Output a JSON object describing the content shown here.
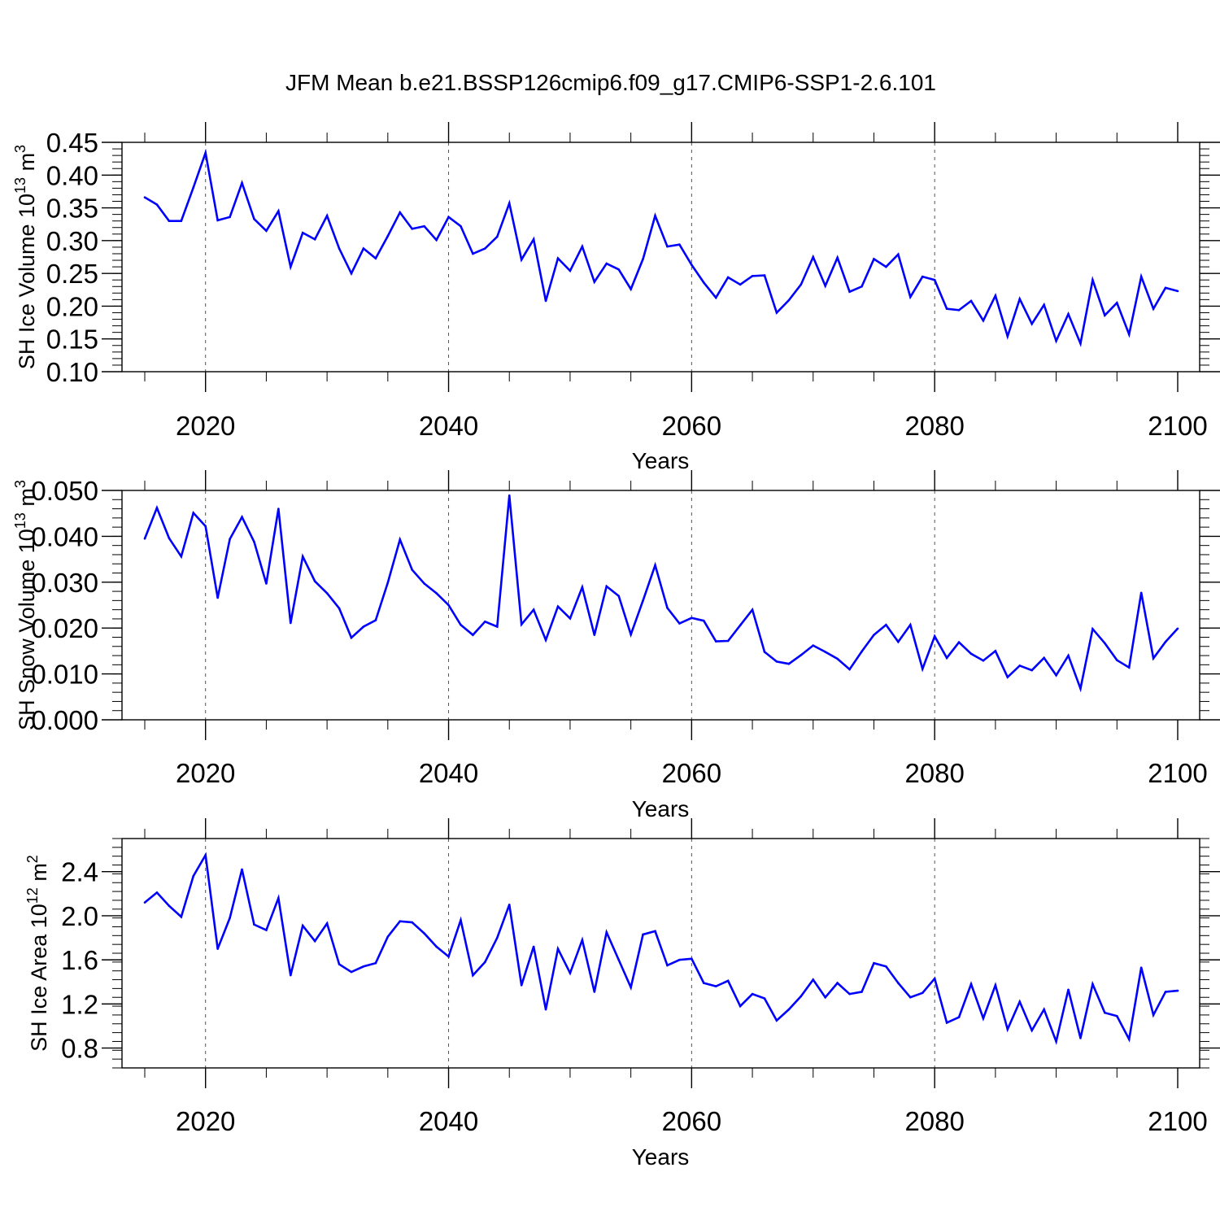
{
  "figure": {
    "title": "JFM Mean b.e21.BSSP126cmip6.f09_g17.CMIP6-SSP1-2.6.101",
    "line_color": "#0000ff"
  },
  "chart_data": [
    {
      "type": "line",
      "title": "",
      "xlabel": "Years",
      "ylabel_main": "SH Ice Volume 10",
      "ylabel_exp": "13",
      "ylabel_unit": " m",
      "ylabel_unit_exp": "3",
      "xlim": [
        2015,
        2100
      ],
      "ylim": [
        0.1,
        0.45
      ],
      "xticks": [
        2020,
        2040,
        2060,
        2080,
        2100
      ],
      "yticks": [
        0.1,
        0.15,
        0.2,
        0.25,
        0.3,
        0.35,
        0.4,
        0.45
      ],
      "ytick_labels": [
        "0.10",
        "0.15",
        "0.20",
        "0.25",
        "0.30",
        "0.35",
        "0.40",
        "0.45"
      ],
      "x": [
        2015,
        2016,
        2017,
        2018,
        2019,
        2020,
        2021,
        2022,
        2023,
        2024,
        2025,
        2026,
        2027,
        2028,
        2029,
        2030,
        2031,
        2032,
        2033,
        2034,
        2035,
        2036,
        2037,
        2038,
        2039,
        2040,
        2041,
        2042,
        2043,
        2044,
        2045,
        2046,
        2047,
        2048,
        2049,
        2050,
        2051,
        2052,
        2053,
        2054,
        2055,
        2056,
        2057,
        2058,
        2059,
        2060,
        2061,
        2062,
        2063,
        2064,
        2065,
        2066,
        2067,
        2068,
        2069,
        2070,
        2071,
        2072,
        2073,
        2074,
        2075,
        2076,
        2077,
        2078,
        2079,
        2080,
        2081,
        2082,
        2083,
        2084,
        2085,
        2086,
        2087,
        2088,
        2089,
        2090,
        2091,
        2092,
        2093,
        2094,
        2095,
        2096,
        2097,
        2098,
        2099,
        2100
      ],
      "values": [
        0.366,
        0.355,
        0.33,
        0.33,
        0.381,
        0.434,
        0.331,
        0.336,
        0.388,
        0.333,
        0.315,
        0.345,
        0.26,
        0.312,
        0.302,
        0.338,
        0.288,
        0.25,
        0.288,
        0.273,
        0.307,
        0.343,
        0.318,
        0.322,
        0.301,
        0.336,
        0.322,
        0.28,
        0.288,
        0.306,
        0.357,
        0.271,
        0.302,
        0.208,
        0.273,
        0.254,
        0.291,
        0.237,
        0.265,
        0.256,
        0.226,
        0.272,
        0.338,
        0.291,
        0.294,
        0.263,
        0.236,
        0.213,
        0.244,
        0.233,
        0.246,
        0.247,
        0.19,
        0.209,
        0.233,
        0.275,
        0.231,
        0.274,
        0.222,
        0.23,
        0.272,
        0.26,
        0.279,
        0.214,
        0.245,
        0.24,
        0.196,
        0.194,
        0.208,
        0.178,
        0.216,
        0.154,
        0.211,
        0.173,
        0.202,
        0.147,
        0.188,
        0.143,
        0.24,
        0.186,
        0.205,
        0.157,
        0.245,
        0.196,
        0.228,
        0.223
      ]
    },
    {
      "type": "line",
      "title": "",
      "xlabel": "Years",
      "ylabel_main": "SH Snow Volume 10",
      "ylabel_exp": "13",
      "ylabel_unit": " m",
      "ylabel_unit_exp": "3",
      "xlim": [
        2015,
        2100
      ],
      "ylim": [
        0.0,
        0.05
      ],
      "xticks": [
        2020,
        2040,
        2060,
        2080,
        2100
      ],
      "yticks": [
        0.0,
        0.01,
        0.02,
        0.03,
        0.04,
        0.05
      ],
      "ytick_labels": [
        "0.000",
        "0.010",
        "0.020",
        "0.030",
        "0.040",
        "0.050"
      ],
      "x": [
        2015,
        2016,
        2017,
        2018,
        2019,
        2020,
        2021,
        2022,
        2023,
        2024,
        2025,
        2026,
        2027,
        2028,
        2029,
        2030,
        2031,
        2032,
        2033,
        2034,
        2035,
        2036,
        2037,
        2038,
        2039,
        2040,
        2041,
        2042,
        2043,
        2044,
        2045,
        2046,
        2047,
        2048,
        2049,
        2050,
        2051,
        2052,
        2053,
        2054,
        2055,
        2056,
        2057,
        2058,
        2059,
        2060,
        2061,
        2062,
        2063,
        2064,
        2065,
        2066,
        2067,
        2068,
        2069,
        2070,
        2071,
        2072,
        2073,
        2074,
        2075,
        2076,
        2077,
        2078,
        2079,
        2080,
        2081,
        2082,
        2083,
        2084,
        2085,
        2086,
        2087,
        2088,
        2089,
        2090,
        2091,
        2092,
        2093,
        2094,
        2095,
        2096,
        2097,
        2098,
        2099,
        2100
      ],
      "values": [
        0.0395,
        0.0462,
        0.0396,
        0.0356,
        0.0451,
        0.0422,
        0.0266,
        0.0394,
        0.0442,
        0.0388,
        0.0297,
        0.046,
        0.0211,
        0.0356,
        0.0302,
        0.0276,
        0.0243,
        0.0179,
        0.0203,
        0.0217,
        0.0299,
        0.0393,
        0.0327,
        0.0297,
        0.0276,
        0.025,
        0.0207,
        0.0185,
        0.0214,
        0.0203,
        0.0489,
        0.0208,
        0.024,
        0.0174,
        0.0247,
        0.0221,
        0.0289,
        0.0185,
        0.0291,
        0.027,
        0.0186,
        0.026,
        0.0337,
        0.0244,
        0.021,
        0.0222,
        0.0216,
        0.0171,
        0.0172,
        0.0206,
        0.024,
        0.0148,
        0.0127,
        0.0122,
        0.0141,
        0.0162,
        0.0148,
        0.0133,
        0.011,
        0.0149,
        0.0185,
        0.0207,
        0.017,
        0.0207,
        0.0111,
        0.0182,
        0.0135,
        0.0169,
        0.0144,
        0.0129,
        0.015,
        0.0093,
        0.0118,
        0.0108,
        0.0135,
        0.0097,
        0.014,
        0.0068,
        0.0198,
        0.0167,
        0.013,
        0.0114,
        0.0277,
        0.0134,
        0.017,
        0.0199
      ]
    },
    {
      "type": "line",
      "title": "",
      "xlabel": "Years",
      "ylabel_main": "SH Ice Area 10",
      "ylabel_exp": "12",
      "ylabel_unit": " m",
      "ylabel_unit_exp": "2",
      "xlim": [
        2015,
        2100
      ],
      "ylim": [
        0.62,
        2.7
      ],
      "xticks": [
        2020,
        2040,
        2060,
        2080,
        2100
      ],
      "yticks": [
        0.8,
        1.2,
        1.6,
        2.0,
        2.4
      ],
      "ytick_labels": [
        "0.8",
        "1.2",
        "1.6",
        "2.0",
        "2.4"
      ],
      "x": [
        2015,
        2016,
        2017,
        2018,
        2019,
        2020,
        2021,
        2022,
        2023,
        2024,
        2025,
        2026,
        2027,
        2028,
        2029,
        2030,
        2031,
        2032,
        2033,
        2034,
        2035,
        2036,
        2037,
        2038,
        2039,
        2040,
        2041,
        2042,
        2043,
        2044,
        2045,
        2046,
        2047,
        2048,
        2049,
        2050,
        2051,
        2052,
        2053,
        2054,
        2055,
        2056,
        2057,
        2058,
        2059,
        2060,
        2061,
        2062,
        2063,
        2064,
        2065,
        2066,
        2067,
        2068,
        2069,
        2070,
        2071,
        2072,
        2073,
        2074,
        2075,
        2076,
        2077,
        2078,
        2079,
        2080,
        2081,
        2082,
        2083,
        2084,
        2085,
        2086,
        2087,
        2088,
        2089,
        2090,
        2091,
        2092,
        2093,
        2094,
        2095,
        2096,
        2097,
        2098,
        2099,
        2100
      ],
      "values": [
        2.12,
        2.21,
        2.09,
        1.99,
        2.36,
        2.55,
        1.7,
        1.98,
        2.42,
        1.92,
        1.87,
        2.16,
        1.46,
        1.91,
        1.77,
        1.93,
        1.56,
        1.49,
        1.54,
        1.57,
        1.81,
        1.95,
        1.94,
        1.84,
        1.72,
        1.63,
        1.96,
        1.46,
        1.58,
        1.8,
        2.1,
        1.37,
        1.72,
        1.15,
        1.7,
        1.48,
        1.78,
        1.31,
        1.85,
        1.6,
        1.35,
        1.83,
        1.86,
        1.55,
        1.6,
        1.61,
        1.39,
        1.36,
        1.41,
        1.18,
        1.29,
        1.25,
        1.05,
        1.15,
        1.27,
        1.42,
        1.26,
        1.39,
        1.29,
        1.31,
        1.57,
        1.54,
        1.39,
        1.26,
        1.3,
        1.43,
        1.03,
        1.08,
        1.38,
        1.07,
        1.37,
        0.97,
        1.22,
        0.96,
        1.15,
        0.86,
        1.33,
        0.89,
        1.38,
        1.12,
        1.09,
        0.88,
        1.53,
        1.1,
        1.31,
        1.32
      ]
    }
  ]
}
